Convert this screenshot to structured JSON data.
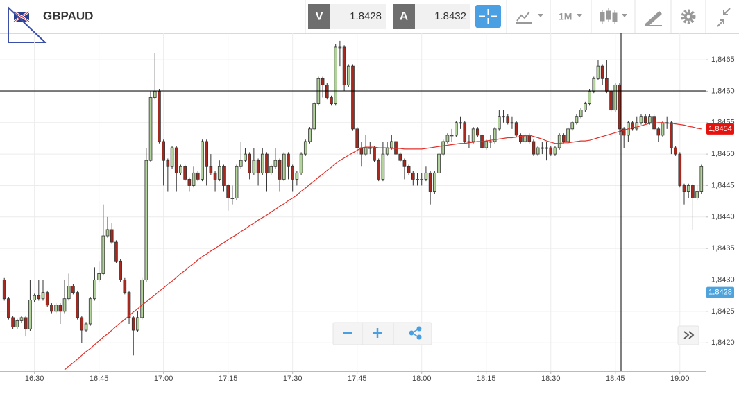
{
  "toolbar": {
    "symbol": "GBPAUD",
    "bid_label": "V",
    "bid": 1.8428,
    "ask_label": "A",
    "ask": 1.8432,
    "timeframe": "1M"
  },
  "chart_data": {
    "type": "candlestick",
    "up_color": "#b3d39c",
    "down_color": "#a9281d",
    "grid": true,
    "ylim": [
      1.84155,
      1.84692
    ],
    "yticks": [
      {
        "value": 1.842,
        "label": "1,8420"
      },
      {
        "value": 1.8425,
        "label": "1,8425"
      },
      {
        "value": 1.843,
        "label": "1,8430"
      },
      {
        "value": 1.8435,
        "label": "1,8435"
      },
      {
        "value": 1.844,
        "label": "1,8440"
      },
      {
        "value": 1.8445,
        "label": "1,8445"
      },
      {
        "value": 1.845,
        "label": "1,8450"
      },
      {
        "value": 1.8455,
        "label": "1,8455"
      },
      {
        "value": 1.846,
        "label": "1,8460"
      },
      {
        "value": 1.8465,
        "label": "1,8465"
      }
    ],
    "price_tags": [
      {
        "value": 1.8454,
        "label": "1,8454",
        "color": "#e5120e"
      },
      {
        "value": 1.8428,
        "label": "1,8428",
        "color": "#4ea3dc"
      }
    ],
    "categories": [
      null,
      null,
      null,
      null,
      null,
      null,
      null,
      "16:30",
      null,
      null,
      null,
      null,
      null,
      null,
      null,
      null,
      null,
      null,
      null,
      null,
      null,
      null,
      "16:45",
      null,
      null,
      null,
      null,
      null,
      null,
      null,
      null,
      null,
      null,
      null,
      null,
      null,
      null,
      "17:00",
      null,
      null,
      null,
      null,
      null,
      null,
      null,
      null,
      null,
      null,
      null,
      null,
      null,
      null,
      "17:15",
      null,
      null,
      null,
      null,
      null,
      null,
      null,
      null,
      null,
      null,
      null,
      null,
      null,
      null,
      "17:30",
      null,
      null,
      null,
      null,
      null,
      null,
      null,
      null,
      null,
      null,
      null,
      null,
      null,
      null,
      "17:45",
      null,
      null,
      null,
      null,
      null,
      null,
      null,
      null,
      null,
      null,
      null,
      null,
      null,
      null,
      "18:00",
      null,
      null,
      null,
      null,
      null,
      null,
      null,
      null,
      null,
      null,
      null,
      null,
      null,
      null,
      "18:15",
      null,
      null,
      null,
      null,
      null,
      null,
      null,
      null,
      null,
      null,
      null,
      null,
      null,
      null,
      "18:30",
      null,
      null,
      null,
      null,
      null,
      null,
      null,
      null,
      null,
      null,
      null,
      null,
      null,
      null,
      "18:45",
      null,
      null,
      null,
      null,
      null,
      null,
      null,
      null,
      null,
      null,
      null,
      null,
      null,
      null,
      "19:00",
      null,
      null,
      null,
      null,
      null
    ],
    "candles": [
      [
        1.843,
        1.84303,
        1.84267,
        1.8427
      ],
      [
        1.8427,
        1.84273,
        1.84237,
        1.8424
      ],
      [
        1.8424,
        1.84243,
        1.84222,
        1.84225
      ],
      [
        1.84225,
        1.84238,
        1.84222,
        1.84235
      ],
      [
        1.84235,
        1.84243,
        1.84232,
        1.8424
      ],
      [
        1.8424,
        1.84243,
        1.8421,
        1.84222
      ],
      [
        1.84222,
        1.843,
        1.84219,
        1.84268
      ],
      [
        1.84268,
        1.84278,
        1.84265,
        1.84275
      ],
      [
        1.84275,
        1.843,
        1.84267,
        1.8427
      ],
      [
        1.8427,
        1.843,
        1.84267,
        1.8428
      ],
      [
        1.8428,
        1.84283,
        1.84257,
        1.8426
      ],
      [
        1.8426,
        1.84263,
        1.84247,
        1.8425
      ],
      [
        1.8425,
        1.84263,
        1.84247,
        1.8426
      ],
      [
        1.8426,
        1.84263,
        1.8423,
        1.8425
      ],
      [
        1.8425,
        1.843,
        1.84247,
        1.8427
      ],
      [
        1.8427,
        1.8431,
        1.84267,
        1.8429
      ],
      [
        1.8429,
        1.84293,
        1.84277,
        1.8428
      ],
      [
        1.8428,
        1.84283,
        1.84237,
        1.8424
      ],
      [
        1.8424,
        1.84243,
        1.842,
        1.8422
      ],
      [
        1.8422,
        1.84233,
        1.84217,
        1.8423
      ],
      [
        1.8423,
        1.84273,
        1.84227,
        1.8427
      ],
      [
        1.8427,
        1.8432,
        1.84267,
        1.843
      ],
      [
        1.843,
        1.8433,
        1.84297,
        1.8431
      ],
      [
        1.8431,
        1.8442,
        1.84307,
        1.8437
      ],
      [
        1.8437,
        1.844,
        1.84367,
        1.8438
      ],
      [
        1.8438,
        1.8439,
        1.84357,
        1.8436
      ],
      [
        1.8436,
        1.84363,
        1.84327,
        1.8433
      ],
      [
        1.8433,
        1.84333,
        1.84297,
        1.843
      ],
      [
        1.843,
        1.84303,
        1.84277,
        1.8428
      ],
      [
        1.8428,
        1.84283,
        1.8423,
        1.8424
      ],
      [
        1.8424,
        1.84243,
        1.8418,
        1.8422
      ],
      [
        1.8422,
        1.8425,
        1.84217,
        1.8424
      ],
      [
        1.8424,
        1.84303,
        1.84237,
        1.843
      ],
      [
        1.843,
        1.8451,
        1.84297,
        1.8449
      ],
      [
        1.8449,
        1.846,
        1.84487,
        1.8459
      ],
      [
        1.8459,
        1.8466,
        1.84587,
        1.846
      ],
      [
        1.846,
        1.84603,
        1.84517,
        1.8452
      ],
      [
        1.8452,
        1.84523,
        1.8445,
        1.8449
      ],
      [
        1.8449,
        1.84493,
        1.8444,
        1.8448
      ],
      [
        1.8448,
        1.84513,
        1.84477,
        1.8451
      ],
      [
        1.8451,
        1.84513,
        1.8444,
        1.8447
      ],
      [
        1.8447,
        1.84483,
        1.84467,
        1.8448
      ],
      [
        1.8448,
        1.84483,
        1.84457,
        1.8446
      ],
      [
        1.8446,
        1.84463,
        1.8444,
        1.8445
      ],
      [
        1.8445,
        1.8448,
        1.84447,
        1.8447
      ],
      [
        1.8447,
        1.84473,
        1.84457,
        1.8446
      ],
      [
        1.8446,
        1.84523,
        1.84457,
        1.8452
      ],
      [
        1.8452,
        1.84523,
        1.8445,
        1.8448
      ],
      [
        1.8448,
        1.845,
        1.84467,
        1.8447
      ],
      [
        1.8447,
        1.84473,
        1.8444,
        1.8446
      ],
      [
        1.8446,
        1.8449,
        1.84457,
        1.8448
      ],
      [
        1.8448,
        1.84483,
        1.8444,
        1.8445
      ],
      [
        1.8445,
        1.84453,
        1.8441,
        1.8443
      ],
      [
        1.8443,
        1.8445,
        1.8442,
        1.8443
      ],
      [
        1.8443,
        1.84483,
        1.84427,
        1.8448
      ],
      [
        1.8448,
        1.8452,
        1.84477,
        1.8449
      ],
      [
        1.8449,
        1.8451,
        1.84487,
        1.845
      ],
      [
        1.845,
        1.84503,
        1.8446,
        1.8447
      ],
      [
        1.8447,
        1.8451,
        1.84467,
        1.8449
      ],
      [
        1.8449,
        1.84493,
        1.8445,
        1.8447
      ],
      [
        1.8447,
        1.8451,
        1.84467,
        1.845
      ],
      [
        1.845,
        1.84503,
        1.8444,
        1.8447
      ],
      [
        1.8447,
        1.84483,
        1.84467,
        1.8448
      ],
      [
        1.8448,
        1.8451,
        1.84477,
        1.8449
      ],
      [
        1.8449,
        1.84493,
        1.8444,
        1.8446
      ],
      [
        1.8446,
        1.84503,
        1.84457,
        1.845
      ],
      [
        1.845,
        1.84503,
        1.8446,
        1.8448
      ],
      [
        1.8448,
        1.84483,
        1.8444,
        1.8446
      ],
      [
        1.8446,
        1.84473,
        1.8445,
        1.8447
      ],
      [
        1.8447,
        1.84503,
        1.84467,
        1.845
      ],
      [
        1.845,
        1.84523,
        1.84497,
        1.8452
      ],
      [
        1.8452,
        1.84543,
        1.84517,
        1.8454
      ],
      [
        1.8454,
        1.84583,
        1.84537,
        1.8458
      ],
      [
        1.8458,
        1.84623,
        1.84577,
        1.8462
      ],
      [
        1.8462,
        1.84623,
        1.8459,
        1.8461
      ],
      [
        1.8461,
        1.84613,
        1.84587,
        1.8459
      ],
      [
        1.8459,
        1.84593,
        1.84577,
        1.8458
      ],
      [
        1.8458,
        1.84675,
        1.84577,
        1.8467
      ],
      [
        1.8467,
        1.8468,
        1.8464,
        1.8467
      ],
      [
        1.8467,
        1.84673,
        1.846,
        1.8461
      ],
      [
        1.8461,
        1.84643,
        1.84607,
        1.8464
      ],
      [
        1.8464,
        1.84643,
        1.84537,
        1.8454
      ],
      [
        1.8454,
        1.84543,
        1.845,
        1.8451
      ],
      [
        1.8451,
        1.8452,
        1.8448,
        1.845
      ],
      [
        1.845,
        1.8453,
        1.84497,
        1.8451
      ],
      [
        1.8451,
        1.8452,
        1.845,
        1.8451
      ],
      [
        1.8451,
        1.84513,
        1.84487,
        1.8449
      ],
      [
        1.8449,
        1.84493,
        1.84457,
        1.8446
      ],
      [
        1.8446,
        1.8452,
        1.84457,
        1.845
      ],
      [
        1.845,
        1.8452,
        1.84497,
        1.8451
      ],
      [
        1.8451,
        1.8453,
        1.84507,
        1.8452
      ],
      [
        1.8452,
        1.84523,
        1.8448,
        1.845
      ],
      [
        1.845,
        1.84503,
        1.84487,
        1.8449
      ],
      [
        1.8449,
        1.84493,
        1.8446,
        1.8448
      ],
      [
        1.8448,
        1.84483,
        1.84467,
        1.8447
      ],
      [
        1.8447,
        1.84473,
        1.8445,
        1.8446
      ],
      [
        1.8446,
        1.8447,
        1.8445,
        1.8446
      ],
      [
        1.8446,
        1.8447,
        1.8445,
        1.8446
      ],
      [
        1.8446,
        1.8448,
        1.84457,
        1.8447
      ],
      [
        1.8447,
        1.84473,
        1.8442,
        1.8444
      ],
      [
        1.8444,
        1.84473,
        1.84437,
        1.8447
      ],
      [
        1.8447,
        1.84503,
        1.84467,
        1.845
      ],
      [
        1.845,
        1.84523,
        1.84497,
        1.8452
      ],
      [
        1.8452,
        1.84533,
        1.84517,
        1.8453
      ],
      [
        1.8453,
        1.8454,
        1.8452,
        1.8453
      ],
      [
        1.8453,
        1.84553,
        1.84527,
        1.8455
      ],
      [
        1.8455,
        1.8456,
        1.8454,
        1.8455
      ],
      [
        1.8455,
        1.84553,
        1.84517,
        1.8452
      ],
      [
        1.8452,
        1.8453,
        1.8451,
        1.8452
      ],
      [
        1.8452,
        1.84543,
        1.84517,
        1.8454
      ],
      [
        1.8454,
        1.84543,
        1.84527,
        1.8453
      ],
      [
        1.8453,
        1.84533,
        1.84507,
        1.8451
      ],
      [
        1.8451,
        1.84523,
        1.84507,
        1.8452
      ],
      [
        1.8452,
        1.8453,
        1.8451,
        1.8452
      ],
      [
        1.8452,
        1.84543,
        1.84517,
        1.8454
      ],
      [
        1.8454,
        1.8457,
        1.84537,
        1.8456
      ],
      [
        1.8456,
        1.8457,
        1.8455,
        1.8456
      ],
      [
        1.8456,
        1.84563,
        1.84547,
        1.8455
      ],
      [
        1.8455,
        1.8456,
        1.8454,
        1.8455
      ],
      [
        1.8455,
        1.84553,
        1.84527,
        1.8453
      ],
      [
        1.8453,
        1.84533,
        1.84517,
        1.8452
      ],
      [
        1.8452,
        1.84533,
        1.84517,
        1.8453
      ],
      [
        1.8453,
        1.84533,
        1.84517,
        1.8452
      ],
      [
        1.8452,
        1.84523,
        1.84497,
        1.845
      ],
      [
        1.845,
        1.84513,
        1.84497,
        1.8451
      ],
      [
        1.8451,
        1.8452,
        1.845,
        1.8451
      ],
      [
        1.8451,
        1.8452,
        1.8449,
        1.8451
      ],
      [
        1.8451,
        1.84513,
        1.84497,
        1.845
      ],
      [
        1.845,
        1.84513,
        1.84497,
        1.8451
      ],
      [
        1.8451,
        1.84533,
        1.84507,
        1.8453
      ],
      [
        1.8453,
        1.84533,
        1.84517,
        1.8452
      ],
      [
        1.8452,
        1.84543,
        1.84517,
        1.8454
      ],
      [
        1.8454,
        1.84553,
        1.84537,
        1.8455
      ],
      [
        1.8455,
        1.84563,
        1.84547,
        1.8456
      ],
      [
        1.8456,
        1.84573,
        1.84557,
        1.8457
      ],
      [
        1.8457,
        1.84583,
        1.84567,
        1.8458
      ],
      [
        1.8458,
        1.84603,
        1.84577,
        1.846
      ],
      [
        1.846,
        1.84623,
        1.84597,
        1.8462
      ],
      [
        1.8462,
        1.8465,
        1.84617,
        1.8464
      ],
      [
        1.8464,
        1.84643,
        1.8461,
        1.8462
      ],
      [
        1.8462,
        1.8465,
        1.84597,
        1.846
      ],
      [
        1.846,
        1.84603,
        1.84567,
        1.8457
      ],
      [
        1.8457,
        1.84613,
        1.84567,
        1.8461
      ],
      [
        1.8461,
        1.84613,
        1.8453,
        1.8454
      ],
      [
        1.8454,
        1.84543,
        1.8451,
        1.8453
      ],
      [
        1.8453,
        1.84553,
        1.8452,
        1.8455
      ],
      [
        1.8455,
        1.84553,
        1.84537,
        1.8454
      ],
      [
        1.8454,
        1.8456,
        1.84537,
        1.8455
      ],
      [
        1.8455,
        1.84563,
        1.84547,
        1.8456
      ],
      [
        1.8456,
        1.84563,
        1.84547,
        1.8455
      ],
      [
        1.8455,
        1.84563,
        1.84547,
        1.8456
      ],
      [
        1.8456,
        1.84563,
        1.84537,
        1.8454
      ],
      [
        1.8454,
        1.84543,
        1.8452,
        1.8453
      ],
      [
        1.8453,
        1.84553,
        1.84527,
        1.8455
      ],
      [
        1.8455,
        1.8456,
        1.8454,
        1.8455
      ],
      [
        1.8455,
        1.84553,
        1.845,
        1.8451
      ],
      [
        1.8451,
        1.84513,
        1.84497,
        1.845
      ],
      [
        1.845,
        1.84503,
        1.84447,
        1.8445
      ],
      [
        1.8445,
        1.84453,
        1.8442,
        1.8444
      ],
      [
        1.8444,
        1.84453,
        1.8443,
        1.8445
      ],
      [
        1.8445,
        1.84453,
        1.8438,
        1.8443
      ],
      [
        1.8443,
        1.8445,
        1.84427,
        1.8444
      ],
      [
        1.8444,
        1.84483,
        1.84437,
        1.8448
      ]
    ],
    "ma": {
      "color": "#e0302a",
      "values": [
        null,
        null,
        null,
        null,
        null,
        null,
        null,
        null,
        null,
        null,
        null,
        null,
        null,
        null,
        1.84157,
        1.84163,
        1.84168,
        1.84174,
        1.8418,
        1.84186,
        1.84191,
        1.84197,
        1.84203,
        1.84209,
        1.84214,
        1.8422,
        1.84226,
        1.84232,
        1.84237,
        1.84243,
        1.84249,
        1.84254,
        1.8426,
        1.84265,
        1.84271,
        1.84276,
        1.84282,
        1.84287,
        1.84293,
        1.84298,
        1.84304,
        1.8431,
        1.84315,
        1.84321,
        1.84326,
        1.84332,
        1.84337,
        1.84341,
        1.84346,
        1.8435,
        1.84355,
        1.84359,
        1.84364,
        1.84368,
        1.84372,
        1.84377,
        1.84381,
        1.84386,
        1.8439,
        1.84395,
        1.84399,
        1.84403,
        1.84408,
        1.84412,
        1.84417,
        1.84421,
        1.84426,
        1.8443,
        1.84435,
        1.84441,
        1.84446,
        1.84452,
        1.84457,
        1.84463,
        1.84468,
        1.84474,
        1.84479,
        1.84485,
        1.8449,
        1.84494,
        1.84498,
        1.84502,
        1.84506,
        1.8451,
        1.84511,
        1.84511,
        1.84511,
        1.8451,
        1.8451,
        1.8451,
        1.84509,
        1.84509,
        1.84509,
        1.84508,
        1.84508,
        1.84508,
        1.84508,
        1.84508,
        1.84509,
        1.8451,
        1.84511,
        1.84512,
        1.84513,
        1.84514,
        1.84515,
        1.84516,
        1.84517,
        1.84517,
        1.84518,
        1.84519,
        1.8452,
        1.8452,
        1.84521,
        1.84522,
        1.84523,
        1.84524,
        1.84525,
        1.84526,
        1.84526,
        1.84527,
        1.84528,
        1.84529,
        1.8453,
        1.84528,
        1.84526,
        1.84524,
        1.84521,
        1.84519,
        1.84517,
        1.84517,
        1.84518,
        1.84518,
        1.84519,
        1.8452,
        1.84521,
        1.84521,
        1.84522,
        1.84524,
        1.84526,
        1.84528,
        1.8453,
        1.84532,
        1.84534,
        1.84536,
        1.84538,
        1.8454,
        1.84542,
        1.84543,
        1.84545,
        1.84547,
        1.84549,
        1.84549,
        1.8455,
        1.8455,
        1.84549,
        1.84549,
        1.84548,
        1.84547,
        1.84546,
        1.84544,
        1.84543,
        1.84541,
        1.8454
      ]
    }
  }
}
